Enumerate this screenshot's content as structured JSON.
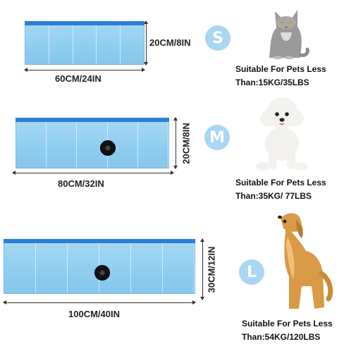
{
  "sizes": [
    {
      "badge": "S",
      "length": "60CM/24IN",
      "height": "20CM/8IN",
      "caption_line1": "Suitable For Pets Less",
      "caption_line2": "Than:15KG/35LBS",
      "pet": "cat"
    },
    {
      "badge": "M",
      "length": "80CM/32IN",
      "height": "20CM/8IN",
      "caption_line1": "Suitable For Pets Less",
      "caption_line2": "Than:35KG/ 77LBS",
      "pet": "poodle"
    },
    {
      "badge": "L",
      "length": "100CM/40IN",
      "height": "30CM/12IN",
      "caption_line1": "Suitable For Pets Less",
      "caption_line2": "Than:54KG/120LBS",
      "pet": "golden-retriever"
    }
  ],
  "colors": {
    "pool_fill": "#8fcdf0",
    "pool_rim": "#2a7fd6",
    "badge": "#a9d7f3"
  }
}
